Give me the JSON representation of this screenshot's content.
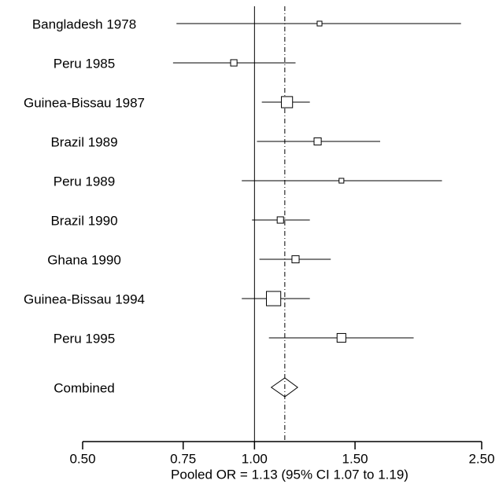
{
  "chart_data": {
    "type": "forest",
    "categories": [
      "Bangladesh 1978",
      "Peru 1985",
      "Guinea-Bissau 1987",
      "Brazil 1989",
      "Peru 1989",
      "Brazil 1990",
      "Ghana 1990",
      "Guinea-Bissau 1994",
      "Peru 1995"
    ],
    "values": [
      1.3,
      0.92,
      1.14,
      1.29,
      1.42,
      1.11,
      1.18,
      1.08,
      1.42
    ],
    "lower": [
      0.73,
      0.72,
      1.03,
      1.01,
      0.95,
      0.99,
      1.02,
      0.95,
      1.06
    ],
    "upper": [
      2.3,
      1.18,
      1.25,
      1.66,
      2.13,
      1.25,
      1.36,
      1.25,
      1.9
    ],
    "weights": [
      3.6,
      6.4,
      19.6,
      8.1,
      3.6,
      6.4,
      8.1,
      32.4,
      12.1
    ],
    "combined": {
      "label": "Combined",
      "value": 1.13,
      "lower": 1.07,
      "upper": 1.19
    },
    "x_label": "Pooled OR = 1.13 (95% CI 1.07 to 1.19)",
    "x_log_scale": true,
    "reference_line": 1,
    "xlim": [
      0.5,
      2.5
    ],
    "xticks": [
      {
        "value": 0.5,
        "label": "0.50"
      },
      {
        "value": 0.75,
        "label": "0.75"
      },
      {
        "value": 1,
        "label": "1.00"
      },
      {
        "value": 1.5,
        "label": "1.50"
      },
      {
        "value": 2.5,
        "label": "2.50"
      }
    ],
    "color": "#000000"
  }
}
